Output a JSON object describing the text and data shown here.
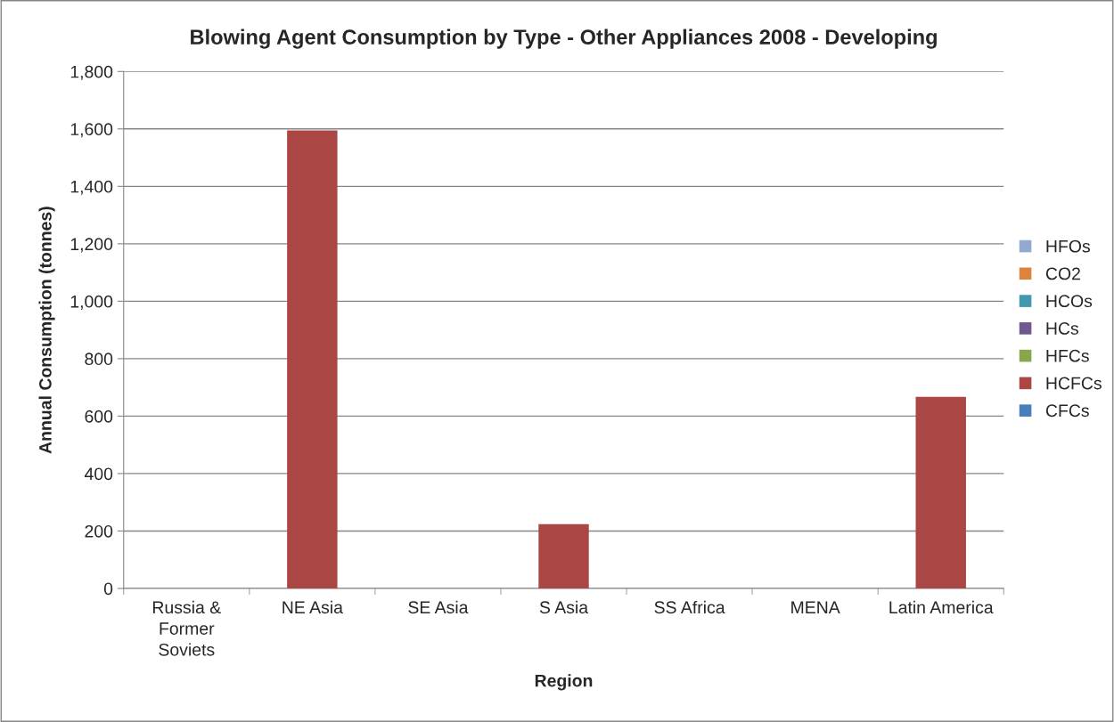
{
  "chart_data": {
    "type": "bar",
    "stacked": true,
    "title": "Blowing Agent Consumption by Type - Other Appliances 2008 - Developing",
    "xlabel": "Region",
    "ylabel": "Annual Consumption (tonnes)",
    "categories": [
      "Russia &\nFormer\nSoviets",
      "NE Asia",
      "SE Asia",
      "S Asia",
      "SS Africa",
      "MENA",
      "Latin America"
    ],
    "series": [
      {
        "name": "CFCs",
        "color": "#4a7ebb",
        "values": [
          0,
          0,
          0,
          0,
          0,
          0,
          0
        ]
      },
      {
        "name": "HCFCs",
        "color": "#aa4643",
        "values": [
          0,
          1595,
          0,
          224,
          0,
          0,
          667
        ]
      },
      {
        "name": "HFCs",
        "color": "#89a54e",
        "values": [
          0,
          0,
          0,
          0,
          0,
          0,
          0
        ]
      },
      {
        "name": "HCs",
        "color": "#71588f",
        "values": [
          0,
          0,
          0,
          0,
          0,
          0,
          0
        ]
      },
      {
        "name": "HCOs",
        "color": "#4198af",
        "values": [
          0,
          0,
          0,
          0,
          0,
          0,
          0
        ]
      },
      {
        "name": "CO2",
        "color": "#db843d",
        "values": [
          0,
          0,
          0,
          0,
          0,
          0,
          0
        ]
      },
      {
        "name": "HFOs",
        "color": "#93a9cf",
        "values": [
          0,
          0,
          0,
          0,
          0,
          0,
          0
        ]
      }
    ],
    "ylim": [
      0,
      1800
    ],
    "yticks": [
      {
        "value": 0,
        "label": "0"
      },
      {
        "value": 200,
        "label": "200"
      },
      {
        "value": 400,
        "label": "400"
      },
      {
        "value": 600,
        "label": "600"
      },
      {
        "value": 800,
        "label": "800"
      },
      {
        "value": 1000,
        "label": "1,000"
      },
      {
        "value": 1200,
        "label": "1,200"
      },
      {
        "value": 1400,
        "label": "1,400"
      },
      {
        "value": 1600,
        "label": "1,600"
      },
      {
        "value": 1800,
        "label": "1,800"
      }
    ],
    "grid": "y",
    "legend": "right"
  }
}
